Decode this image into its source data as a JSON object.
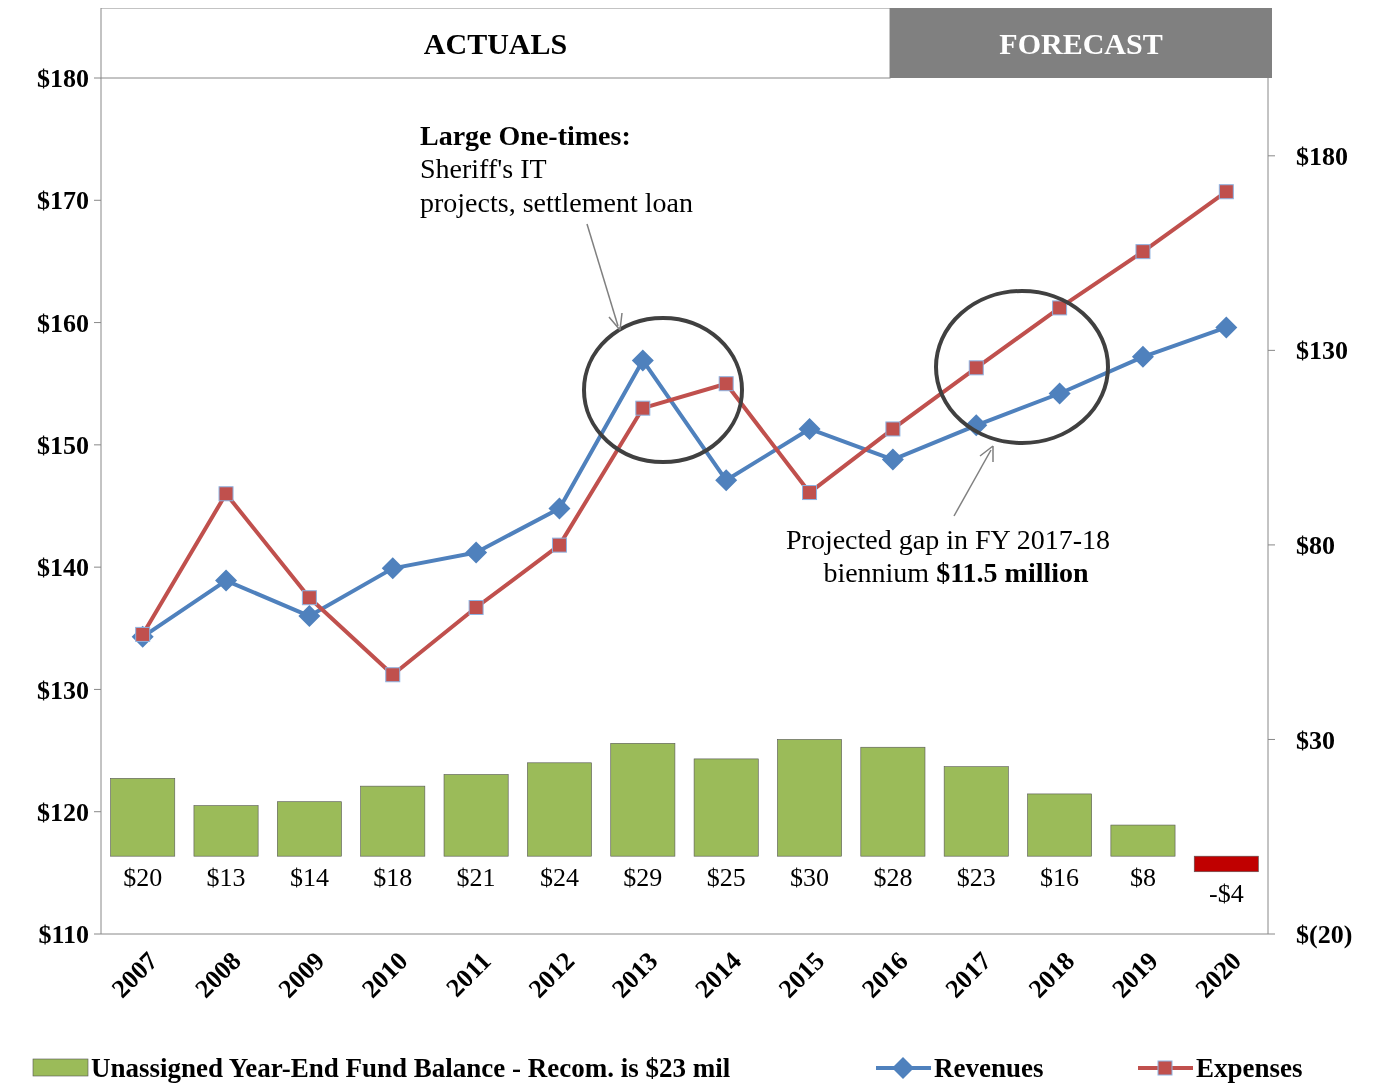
{
  "chart_data": {
    "type": "line",
    "categories": [
      "2007",
      "2008",
      "2009",
      "2010",
      "2011",
      "2012",
      "2013",
      "2014",
      "2015",
      "2016",
      "2017",
      "2018",
      "2019",
      "2020"
    ],
    "series": [
      {
        "name": "Unassigned Year-End Fund Balance - Recom. is $23 mil",
        "type": "bar",
        "axis": "y2",
        "color": "#9bbb59",
        "colors": [
          "#9bbb59",
          "#9bbb59",
          "#9bbb59",
          "#9bbb59",
          "#9bbb59",
          "#9bbb59",
          "#9bbb59",
          "#9bbb59",
          "#9bbb59",
          "#9bbb59",
          "#9bbb59",
          "#9bbb59",
          "#9bbb59",
          "#c00000"
        ],
        "values": [
          20,
          13,
          14,
          18,
          21,
          24,
          29,
          25,
          30,
          28,
          23,
          16,
          8,
          -4
        ],
        "value_labels": [
          "$20",
          "$13",
          "$14",
          "$18",
          "$21",
          "$24",
          "$29",
          "$25",
          "$30",
          "$28",
          "$23",
          "$16",
          "$8",
          "-$4"
        ]
      },
      {
        "name": "Revenues",
        "color": "#4f81bd",
        "marker": "diamond",
        "values": [
          134.3,
          138.9,
          136.0,
          139.9,
          141.2,
          144.8,
          156.9,
          147.1,
          151.3,
          148.8,
          151.6,
          154.2,
          157.2,
          159.6
        ]
      },
      {
        "name": "Expenses",
        "color": "#c0504d",
        "marker": "square",
        "values": [
          134.5,
          146.0,
          137.5,
          131.2,
          136.7,
          141.8,
          153.0,
          155.0,
          146.1,
          151.3,
          156.3,
          161.2,
          165.8,
          170.7
        ]
      }
    ],
    "ylim": [
      110,
      180
    ],
    "yticks": [
      {
        "value": 110,
        "label": "$110"
      },
      {
        "value": 120,
        "label": "$120"
      },
      {
        "value": 130,
        "label": "$130"
      },
      {
        "value": 140,
        "label": "$140"
      },
      {
        "value": 150,
        "label": "$150"
      },
      {
        "value": 160,
        "label": "$160"
      },
      {
        "value": 170,
        "label": "$170"
      },
      {
        "value": 180,
        "label": "$180"
      }
    ],
    "y2lim": [
      -20,
      200
    ],
    "y2ticks": [
      {
        "value": -20,
        "label": "$(20)"
      },
      {
        "value": 30,
        "label": "$30"
      },
      {
        "value": 80,
        "label": "$80"
      },
      {
        "value": 130,
        "label": "$130"
      },
      {
        "value": 180,
        "label": "$180"
      }
    ],
    "annotations": [
      "ACTUALS",
      "FORECAST",
      "Large One-times:",
      "Sheriff's IT",
      "projects, settlement loan",
      "Projected gap in FY 2017-18",
      "biennium",
      "$11.5 million"
    ],
    "grid": false,
    "legend": "bottom"
  }
}
